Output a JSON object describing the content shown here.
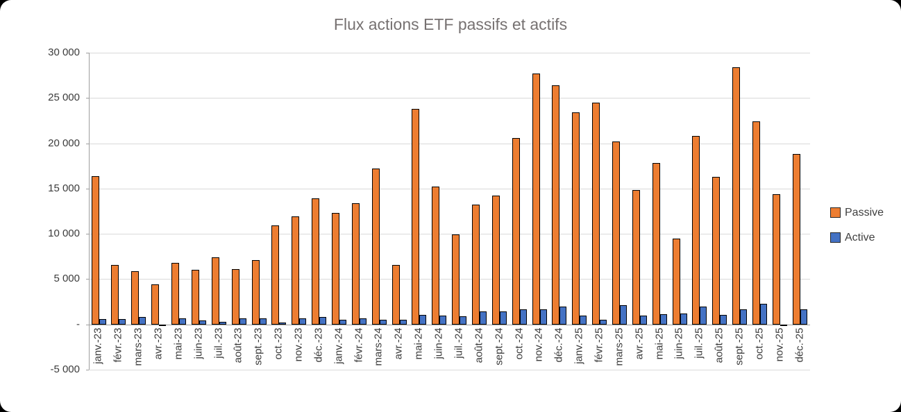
{
  "title": "Flux actions ETF passifs et actifs",
  "colors": {
    "passive": "#ED7D31",
    "active": "#4472C4",
    "bar_border": "#000000",
    "gridline": "#D9D9D9",
    "axis_line": "#9E9E9E",
    "title_text": "#767171",
    "label_text": "#3B3B3B"
  },
  "legend": {
    "items": [
      {
        "label": "Passive"
      },
      {
        "label": "Active"
      }
    ]
  },
  "chart_data": {
    "type": "bar",
    "title": "Flux actions ETF passifs et actifs",
    "categories": [
      "janv.-23",
      "févr.-23",
      "mars-23",
      "avr.-23",
      "mai-23",
      "juin-23",
      "juil.-23",
      "août-23",
      "sept.-23",
      "oct.-23",
      "nov.-23",
      "déc.-23",
      "janv.-24",
      "févr.-24",
      "mars-24",
      "avr.-24",
      "mai-24",
      "juin-24",
      "juil.-24",
      "août-24",
      "sept.-24",
      "oct.-24",
      "nov.-24",
      "déc.-24",
      "janv.-25",
      "févr.-25",
      "mars-25",
      "avr.-25",
      "mai-25",
      "juin-25",
      "juil.-25",
      "août-25",
      "sept.-25",
      "oct.-25",
      "nov.-25",
      "déc.-25"
    ],
    "series": [
      {
        "name": "Passive",
        "color": "#ED7D31",
        "values": [
          16400,
          6600,
          5900,
          4400,
          6800,
          6000,
          7400,
          6100,
          7100,
          10900,
          11900,
          13900,
          12300,
          13400,
          17200,
          6600,
          23800,
          15200,
          9900,
          13200,
          14200,
          20600,
          27700,
          26400,
          23400,
          24500,
          20200,
          14800,
          17800,
          9500,
          20800,
          16300,
          28400,
          22400,
          14400,
          18800
        ]
      },
      {
        "name": "Active",
        "color": "#4472C4",
        "values": [
          600,
          600,
          800,
          -100,
          700,
          450,
          300,
          700,
          700,
          200,
          700,
          800,
          500,
          650,
          500,
          550,
          1050,
          1000,
          900,
          1450,
          1400,
          1650,
          1700,
          2000,
          1000,
          550,
          2100,
          1000,
          1100,
          1200,
          1950,
          1050,
          1650,
          2300,
          -150,
          1700
        ]
      }
    ],
    "ylim": [
      -5000,
      30000
    ],
    "ytick_interval": 5000,
    "ytick_labels_top_to_bottom": [
      "30 000",
      "25 000",
      "20 000",
      "15 000",
      "10 000",
      "5 000",
      "-",
      "-5 000"
    ],
    "grid": true,
    "legend_position": "right",
    "xlabel": "",
    "ylabel": ""
  }
}
